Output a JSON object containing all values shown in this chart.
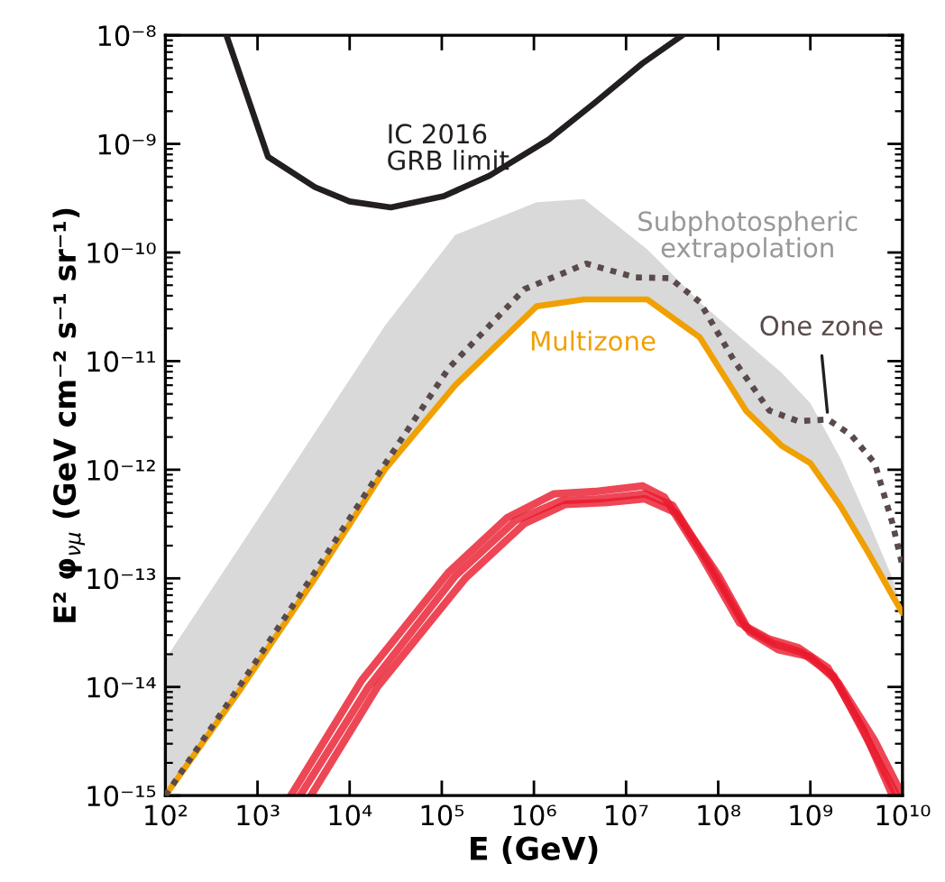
{
  "chart_data": {
    "type": "line",
    "xlabel": "E (GeV)",
    "ylabel": "E² φ$_{νμ}$ (GeV cm⁻² s⁻¹ sr⁻¹)",
    "log": "xy",
    "grid": false,
    "legend": false,
    "xlim": [
      100,
      10000000000
    ],
    "ylim": [
      1e-15,
      1e-08
    ],
    "xticks": [
      {
        "value": 100,
        "label": "10²"
      },
      {
        "value": 1000,
        "label": "10³"
      },
      {
        "value": 10000,
        "label": "10⁴"
      },
      {
        "value": 100000,
        "label": "10⁵"
      },
      {
        "value": 1000000,
        "label": "10⁶"
      },
      {
        "value": 10000000,
        "label": "10⁷"
      },
      {
        "value": 100000000,
        "label": "10⁸"
      },
      {
        "value": 1000000000,
        "label": "10⁹"
      },
      {
        "value": 10000000000,
        "label": "10¹⁰"
      }
    ],
    "yticks": [
      {
        "value": 1e-15,
        "label": "10⁻¹⁵"
      },
      {
        "value": 1e-14,
        "label": "10⁻¹⁴"
      },
      {
        "value": 1e-13,
        "label": "10⁻¹³"
      },
      {
        "value": 1e-12,
        "label": "10⁻¹²"
      },
      {
        "value": 1e-11,
        "label": "10⁻¹¹"
      },
      {
        "value": 1e-10,
        "label": "10⁻¹⁰"
      },
      {
        "value": 1e-09,
        "label": "10⁻⁹"
      },
      {
        "value": 1e-08,
        "label": "10⁻⁸"
      }
    ],
    "series": [
      {
        "name": "Subphotospheric\nextrapolation",
        "type": "area",
        "color": "#d9d9d9",
        "x": [
          100,
          680,
          4200,
          24000,
          140000,
          1070000,
          3500000,
          17000000,
          63000000,
          200000000,
          490000000,
          1000000000,
          2100000000,
          4300000000,
          7800000000,
          10000000000
        ],
        "values": [
          1.8e-14,
          2.1e-13,
          2.2e-12,
          2.1e-11,
          1.45e-10,
          2.9e-10,
          3.1e-10,
          1.07e-10,
          3.5e-11,
          1.5e-11,
          7.8e-12,
          4.1e-12,
          1.3e-12,
          3.3e-13,
          1e-13,
          4.8e-14
        ]
      },
      {
        "name": "IC 2016\nGRB limit",
        "color": "#231f20",
        "line_style": "solid",
        "x": [
          460,
          1300,
          4200,
          10000,
          28000,
          105000,
          330000,
          1450000,
          4600000,
          15000000,
          41000000
        ],
        "values": [
          1e-08,
          7.6e-10,
          4e-10,
          2.95e-10,
          2.6e-10,
          3.3e-10,
          5.1e-10,
          1.1e-09,
          2.4e-09,
          5.5e-09,
          1e-08
        ]
      },
      {
        "name": "Multizone",
        "color": "#f0a000",
        "line_style": "solid",
        "x": [
          100,
          680,
          4200,
          24000,
          140000,
          1070000,
          3500000,
          17000000,
          63000000,
          200000000,
          490000000,
          1000000000,
          2100000000,
          4300000000,
          7800000000,
          10000000000
        ],
        "values": [
          1e-15,
          1e-14,
          1e-13,
          1e-12,
          6e-12,
          3.2e-11,
          3.7e-11,
          3.7e-11,
          1.66e-11,
          3.5e-12,
          1.66e-12,
          1.15e-12,
          4.7e-13,
          1.7e-13,
          6.9e-14,
          4.8e-14
        ]
      },
      {
        "name": "One zone",
        "color": "#5a4a4a",
        "line_style": "dotted",
        "x": [
          100,
          630,
          3800,
          22000,
          120000,
          790000,
          3700000,
          12600000,
          30000000,
          63000000,
          150000000,
          360000000,
          740000000,
          1550000000,
          2750000000,
          5000000000,
          7800000000,
          10000000000
        ],
        "values": [
          1e-15,
          1e-14,
          1e-13,
          1e-12,
          8.7e-12,
          4.6e-11,
          7.9e-11,
          5.9e-11,
          5.8e-11,
          3.5e-11,
          1e-11,
          3.5e-12,
          2.8e-12,
          2.9e-12,
          2.1e-12,
          1.15e-12,
          3.2e-13,
          1.3e-13
        ]
      },
      {
        "color": "#e8192c",
        "line_style": "solid",
        "x": [
          2300,
          13500,
          120000,
          510000,
          1660000,
          4600000,
          15000000,
          26000000,
          63000000,
          170000000,
          360000000,
          740000000,
          1550000000,
          3700000000,
          7800000000
        ],
        "values": [
          1e-15,
          1.15e-14,
          1.15e-13,
          3.6e-13,
          6e-13,
          6.3e-13,
          7.1e-13,
          5.6e-13,
          1.7e-13,
          3.9e-14,
          2.75e-14,
          2.3e-14,
          1.5e-14,
          4.2e-15,
          1e-15
        ]
      },
      {
        "color": "#e8192c",
        "line_style": "solid",
        "x": [
          2900,
          16000,
          140000,
          630000,
          2000000,
          5000000,
          16000000,
          32000000,
          79000000,
          200000000,
          400000000,
          790000000,
          1800000000,
          4000000000,
          8700000000
        ],
        "values": [
          1e-15,
          1e-14,
          1.05e-13,
          3.4e-13,
          5.2e-13,
          5.4e-13,
          6e-13,
          4.7e-13,
          1.35e-13,
          3.5e-14,
          2.5e-14,
          2.1e-14,
          1.26e-14,
          3.5e-15,
          1e-15
        ]
      },
      {
        "color": "#e8192c",
        "line_style": "solid",
        "x": [
          3800,
          20000,
          180000,
          790000,
          2200000,
          6300000,
          16000000,
          35000000,
          100000000,
          220000000,
          450000000,
          1000000000,
          2000000000,
          5000000000,
          10000000000
        ],
        "values": [
          1e-15,
          1e-14,
          1e-13,
          3.2e-13,
          4.8e-13,
          5e-13,
          5.4e-13,
          4e-13,
          1.07e-13,
          3.2e-14,
          2.2e-14,
          1.9e-14,
          1.1e-14,
          3.2e-15,
          1e-15
        ]
      }
    ]
  }
}
